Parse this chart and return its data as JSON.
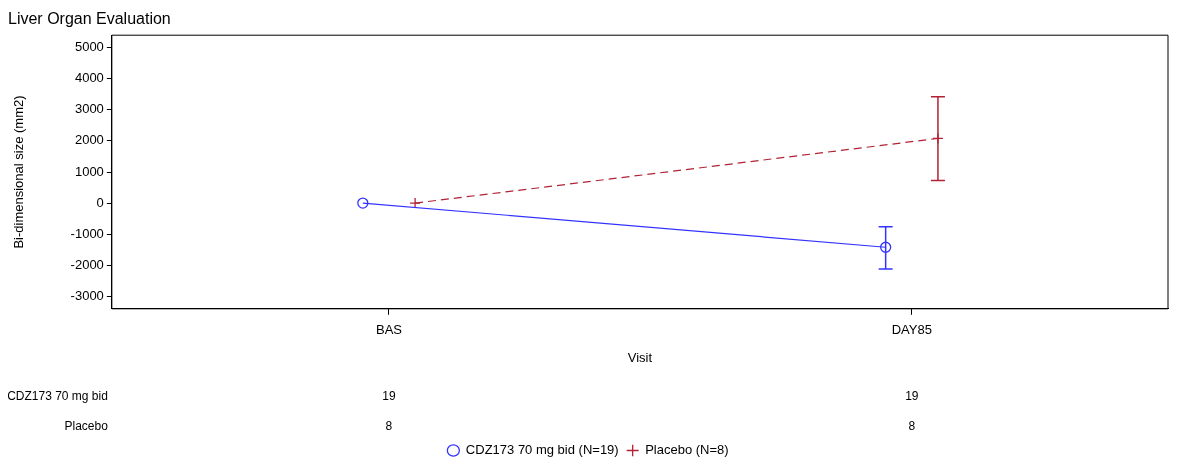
{
  "chart_data": {
    "type": "line",
    "title": "Liver Organ Evaluation",
    "xlabel": "Visit",
    "ylabel": "Bi-dimensional size (mm2)",
    "categories": [
      "BAS",
      "DAY85"
    ],
    "series": [
      {
        "name": "CDZ173 70 mg bid (N=19)",
        "color": "#3333ff",
        "values": [
          0,
          -1420
        ],
        "errors": [
          null,
          [
            -2120,
            -760
          ]
        ],
        "marker": "circle",
        "line_style": "solid"
      },
      {
        "name": "Placebo (N=8)",
        "color": "#b22234",
        "values": [
          0,
          2080
        ],
        "errors": [
          null,
          [
            730,
            3420
          ]
        ],
        "marker": "cross",
        "line_style": "dashed"
      }
    ],
    "ylim": [
      -3400,
      5400
    ],
    "yticks": [
      -3000,
      -2000,
      -1000,
      0,
      1000,
      2000,
      3000,
      4000,
      5000
    ],
    "grid": false,
    "legend": "bottom",
    "annotations": [
      "CDZ173 70 mg bid",
      "19",
      "19",
      "Placebo",
      "8",
      "8"
    ]
  }
}
